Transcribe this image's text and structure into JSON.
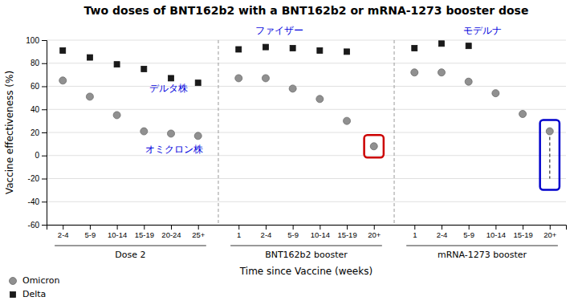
{
  "chart_data": {
    "type": "scatter",
    "title": "Two doses of BNT162b2 with a BNT162b2 or mRNA-1273 booster dose",
    "y_label": "Vaccine effectiveness (%)",
    "x_label": "Time since Vaccine (weeks)",
    "groups": [
      {
        "name": "Dose 2",
        "categories": [
          "2-4",
          "5-9",
          "10-14",
          "15-19",
          "20-24",
          "25+"
        ]
      },
      {
        "name": "BNT162b2 booster",
        "categories": [
          "1",
          "2-4",
          "5-9",
          "10-14",
          "15-19",
          "20+"
        ]
      },
      {
        "name": "mRNA-1273 booster",
        "categories": [
          "1",
          "2-4",
          "5-9",
          "10-14",
          "15-19",
          "20+"
        ]
      }
    ],
    "series": [
      {
        "name": "Omicron",
        "color": "#909090",
        "marker": "circle",
        "values": [
          65,
          51,
          35,
          21,
          19,
          17,
          67,
          67,
          58,
          49,
          30,
          8,
          72,
          72,
          64,
          54,
          36,
          21
        ],
        "error_low": [
          null,
          null,
          null,
          null,
          null,
          null,
          null,
          null,
          null,
          null,
          null,
          null,
          null,
          null,
          null,
          null,
          null,
          -20
        ],
        "error_high": [
          null,
          null,
          null,
          null,
          null,
          null,
          null,
          null,
          null,
          null,
          null,
          null,
          null,
          null,
          null,
          null,
          null,
          21
        ]
      },
      {
        "name": "Delta",
        "color": "#1a1a1a",
        "marker": "square",
        "values": [
          91,
          85,
          79,
          75,
          67,
          63,
          92,
          94,
          93,
          91,
          90,
          null,
          93,
          97,
          95,
          null,
          null,
          null
        ]
      }
    ],
    "highlights": [
      {
        "index": 11,
        "color": "#cc0000"
      },
      {
        "index": 17,
        "color": "#0000cc"
      }
    ],
    "annotations": [
      {
        "text": "ファイザー",
        "color": "#0000dd"
      },
      {
        "text": "モデルナ",
        "color": "#0000dd"
      },
      {
        "text": "デルタ株",
        "color": "#0000dd"
      },
      {
        "text": "オミクロン株",
        "color": "#0000dd"
      }
    ],
    "ylim": [
      -60,
      100
    ],
    "yticks": [
      -60,
      -40,
      -20,
      0,
      20,
      40,
      60,
      80,
      100
    ],
    "grid": true,
    "legend": "lower left"
  }
}
